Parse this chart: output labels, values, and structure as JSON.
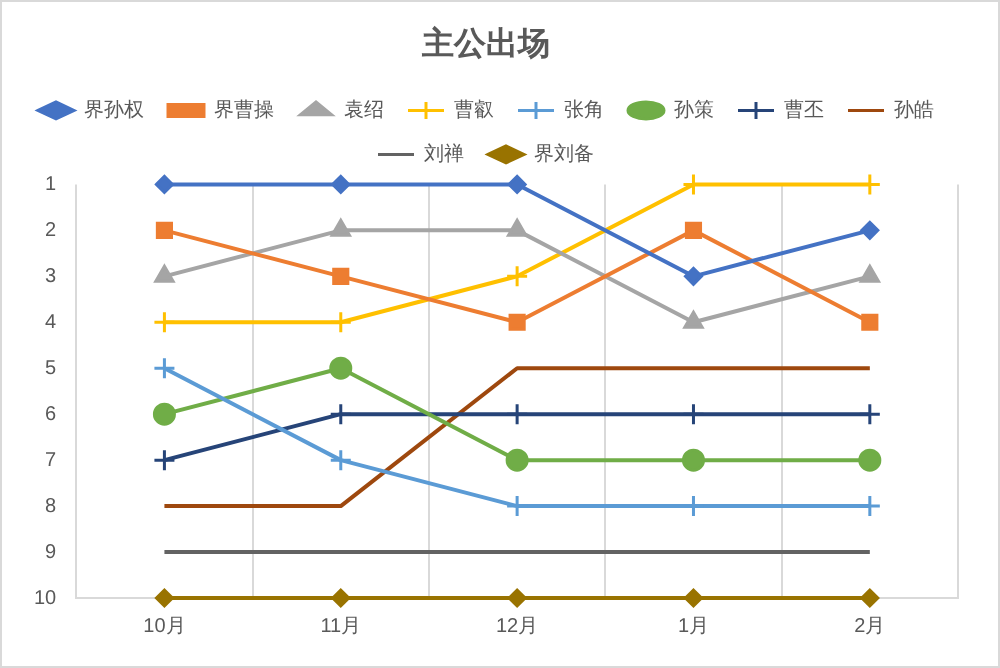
{
  "chart_data": {
    "type": "line",
    "title": "主公出场",
    "categories": [
      "10月",
      "11月",
      "12月",
      "1月",
      "2月"
    ],
    "series": [
      {
        "name": "界孙权",
        "color": "#4472c4",
        "marker": "diamond",
        "values": [
          1,
          1,
          1,
          3,
          2
        ]
      },
      {
        "name": "界曹操",
        "color": "#ed7d31",
        "marker": "square",
        "values": [
          2,
          3,
          4,
          2,
          4
        ]
      },
      {
        "name": "袁绍",
        "color": "#a5a5a5",
        "marker": "triangle",
        "values": [
          3,
          2,
          2,
          4,
          3
        ]
      },
      {
        "name": "曹叡",
        "color": "#ffc000",
        "marker": "cross",
        "values": [
          4,
          4,
          3,
          1,
          1
        ]
      },
      {
        "name": "张角",
        "color": "#5b9bd5",
        "marker": "cross",
        "values": [
          5,
          7,
          8,
          8,
          8
        ]
      },
      {
        "name": "孙策",
        "color": "#70ad47",
        "marker": "circle",
        "values": [
          6,
          5,
          7,
          7,
          7
        ]
      },
      {
        "name": "曹丕",
        "color": "#264478",
        "marker": "cross",
        "values": [
          7,
          6,
          6,
          6,
          6
        ]
      },
      {
        "name": "孙皓",
        "color": "#9e480e",
        "marker": "none",
        "values": [
          8,
          8,
          5,
          5,
          5
        ]
      },
      {
        "name": "刘禅",
        "color": "#636363",
        "marker": "none",
        "values": [
          9,
          9,
          9,
          9,
          9
        ]
      },
      {
        "name": "界刘备",
        "color": "#997300",
        "marker": "diamond",
        "values": [
          10,
          10,
          10,
          10,
          10
        ]
      }
    ],
    "ylim": [
      10,
      1
    ],
    "yticks": [
      1,
      2,
      3,
      4,
      5,
      6,
      7,
      8,
      9,
      10
    ],
    "grid": "x",
    "legend": "top"
  }
}
